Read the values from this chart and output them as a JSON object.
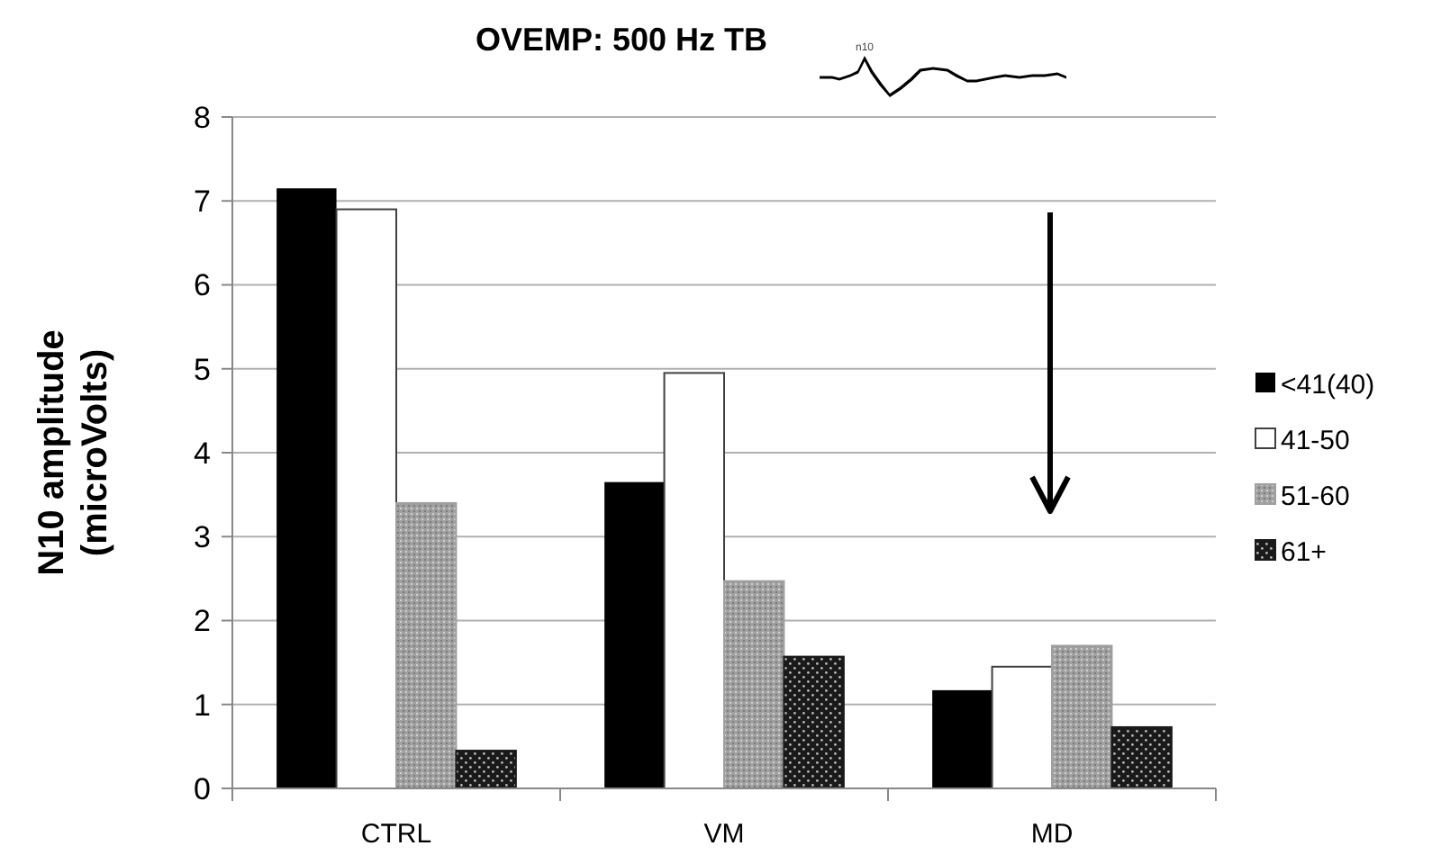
{
  "chart_data": {
    "type": "bar",
    "title": "OVEMP: 500 Hz TB",
    "ylabel": "N10 amplitude (microVolts)",
    "annotations": [
      "n10"
    ],
    "categories": [
      "CTRL",
      "VM",
      "MD"
    ],
    "series": [
      {
        "name": "<41(40)",
        "color": "#000000",
        "values": [
          7.15,
          3.65,
          1.17
        ]
      },
      {
        "name": "41-50",
        "color": "#ffffff",
        "values": [
          6.9,
          4.95,
          1.45
        ]
      },
      {
        "name": "51-60",
        "color": "#a0a0a0",
        "values": [
          3.4,
          2.47,
          1.7
        ]
      },
      {
        "name": "61+",
        "color": "#1a1a1a",
        "values": [
          0.45,
          1.57,
          0.73
        ]
      }
    ],
    "ylim": [
      0,
      8
    ],
    "yticks": [
      0,
      1,
      2,
      3,
      4,
      5,
      6,
      7,
      8
    ],
    "grid": "y",
    "legend": "right"
  }
}
